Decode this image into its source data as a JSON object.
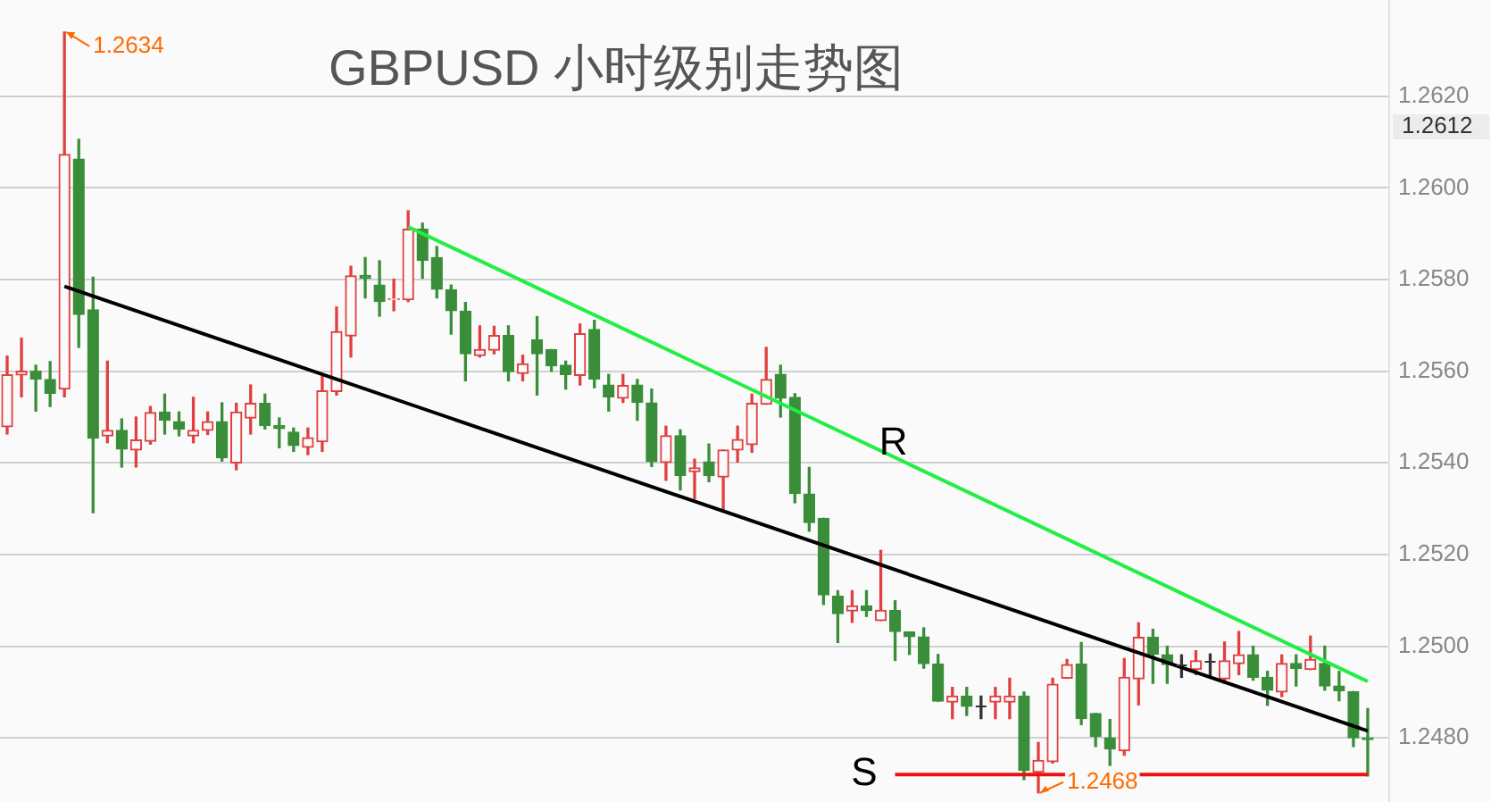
{
  "chart_data": {
    "type": "candlestick",
    "title": "GBPUSD 小时级别走势图",
    "categories": [
      null,
      null,
      null,
      null,
      null,
      null,
      null,
      null,
      null,
      null,
      null,
      null,
      null,
      null,
      null,
      null,
      null,
      null,
      null,
      null,
      null,
      null,
      null,
      null,
      null,
      null,
      null,
      null,
      null,
      null,
      null,
      null,
      null,
      null,
      null,
      null,
      null,
      null,
      null,
      null,
      null,
      null,
      null,
      null,
      null,
      null,
      null,
      null,
      null,
      null,
      null,
      null,
      null,
      null,
      null,
      null,
      null,
      null,
      null,
      null,
      null,
      null,
      null,
      null,
      null,
      null,
      null,
      null,
      null,
      null,
      null,
      null,
      null,
      null,
      null,
      null,
      null,
      null,
      null,
      null,
      null,
      null,
      null,
      null,
      null,
      null,
      null,
      null,
      null,
      null,
      null,
      null,
      null,
      null,
      null,
      null
    ],
    "ohlc": [
      [
        1.25479,
        1.25633,
        1.25463,
        1.25592
      ],
      [
        1.25592,
        1.25672,
        1.25544,
        1.256
      ],
      [
        1.256,
        1.25613,
        1.25513,
        1.25583
      ],
      [
        1.25582,
        1.25621,
        1.25523,
        1.25552
      ],
      [
        1.25561,
        1.2634,
        1.25544,
        1.26073
      ],
      [
        1.26063,
        1.26106,
        1.25652,
        1.25724
      ],
      [
        1.25734,
        1.25805,
        1.25291,
        1.25454
      ],
      [
        1.25459,
        1.25622,
        1.25444,
        1.25471
      ],
      [
        1.25471,
        1.25496,
        1.25391,
        1.2543
      ],
      [
        1.25428,
        1.255,
        1.25391,
        1.2545
      ],
      [
        1.25447,
        1.25523,
        1.25441,
        1.2551
      ],
      [
        1.25511,
        1.2555,
        1.25463,
        1.25493
      ],
      [
        1.2549,
        1.25511,
        1.25459,
        1.25474
      ],
      [
        1.25459,
        1.25543,
        1.25444,
        1.25471
      ],
      [
        1.25471,
        1.25511,
        1.25462,
        1.2549
      ],
      [
        1.2549,
        1.25531,
        1.25404,
        1.25411
      ],
      [
        1.254,
        1.2553,
        1.25385,
        1.25511
      ],
      [
        1.25498,
        1.2557,
        1.25463,
        1.2553
      ],
      [
        1.2553,
        1.2555,
        1.25474,
        1.25481
      ],
      [
        1.25481,
        1.25498,
        1.25433,
        1.25475
      ],
      [
        1.25467,
        1.25476,
        1.25425,
        1.25438
      ],
      [
        1.25434,
        1.25476,
        1.25418,
        1.25455
      ],
      [
        1.25446,
        1.2559,
        1.25425,
        1.25557
      ],
      [
        1.25556,
        1.2574,
        1.25548,
        1.25686
      ],
      [
        1.25677,
        1.25829,
        1.25631,
        1.25808
      ],
      [
        1.25809,
        1.25848,
        1.2576,
        1.25803
      ],
      [
        1.25788,
        1.25841,
        1.2572,
        1.25752
      ],
      [
        1.25756,
        1.25801,
        1.25732,
        1.25758
      ],
      [
        1.25756,
        1.2595,
        1.25752,
        1.2591
      ],
      [
        1.2591,
        1.25923,
        1.25803,
        1.25842
      ],
      [
        1.25848,
        1.25872,
        1.2576,
        1.25779
      ],
      [
        1.25778,
        1.25788,
        1.25681,
        1.25732
      ],
      [
        1.25731,
        1.2575,
        1.25579,
        1.25638
      ],
      [
        1.25634,
        1.25699,
        1.25631,
        1.25647
      ],
      [
        1.25646,
        1.25698,
        1.25638,
        1.25678
      ],
      [
        1.25678,
        1.25699,
        1.25579,
        1.25599
      ],
      [
        1.25595,
        1.25635,
        1.25579,
        1.25616
      ],
      [
        1.25668,
        1.25719,
        1.25548,
        1.25638
      ],
      [
        1.25647,
        1.25647,
        1.256,
        1.25612
      ],
      [
        1.25613,
        1.25622,
        1.25561,
        1.25593
      ],
      [
        1.25591,
        1.25703,
        1.2557,
        1.25682
      ],
      [
        1.25691,
        1.25711,
        1.25564,
        1.25583
      ],
      [
        1.2557,
        1.25593,
        1.25513,
        1.25544
      ],
      [
        1.25541,
        1.25593,
        1.25532,
        1.25569
      ],
      [
        1.2557,
        1.25582,
        1.25493,
        1.25532
      ],
      [
        1.25531,
        1.25561,
        1.25392,
        1.25403
      ],
      [
        1.25401,
        1.2548,
        1.25362,
        1.25459
      ],
      [
        1.25459,
        1.25472,
        1.25341,
        1.25372
      ],
      [
        1.25381,
        1.25408,
        1.25322,
        1.25389
      ],
      [
        1.25402,
        1.25441,
        1.25359,
        1.25372
      ],
      [
        1.25369,
        1.25428,
        1.25294,
        1.25428
      ],
      [
        1.25428,
        1.2548,
        1.25402,
        1.25451
      ],
      [
        1.2544,
        1.2555,
        1.25423,
        1.2553
      ],
      [
        1.25528,
        1.25652,
        1.25528,
        1.25582
      ],
      [
        1.25593,
        1.25613,
        1.255,
        1.25541
      ],
      [
        1.25543,
        1.25551,
        1.25313,
        1.25333
      ],
      [
        1.25332,
        1.2539,
        1.25251,
        1.2527
      ],
      [
        1.25279,
        1.25279,
        1.25091,
        1.25112
      ],
      [
        1.25109,
        1.25121,
        1.25008,
        1.25071
      ],
      [
        1.25077,
        1.25121,
        1.25052,
        1.25088
      ],
      [
        1.25088,
        1.25121,
        1.25065,
        1.25078
      ],
      [
        1.25056,
        1.25209,
        1.25056,
        1.25078
      ],
      [
        1.25078,
        1.25099,
        1.24969,
        1.25032
      ],
      [
        1.25031,
        1.25031,
        1.24982,
        1.25021
      ],
      [
        1.2502,
        1.2504,
        1.24952,
        1.24962
      ],
      [
        1.24961,
        1.24982,
        1.2488,
        1.2488
      ],
      [
        1.24878,
        1.2491,
        1.24842,
        1.24891
      ],
      [
        1.24891,
        1.2491,
        1.24849,
        1.24869
      ],
      [
        1.24871,
        1.24891,
        1.24842,
        1.24871
      ],
      [
        1.24878,
        1.2491,
        1.24842,
        1.24891
      ],
      [
        1.24878,
        1.2493,
        1.24842,
        1.24891
      ],
      [
        1.24891,
        1.249,
        1.24709,
        1.24729
      ],
      [
        1.24725,
        1.2479,
        1.2468,
        1.24751
      ],
      [
        1.24748,
        1.2493,
        1.24745,
        1.24917
      ],
      [
        1.2493,
        1.24971,
        1.2493,
        1.2496
      ],
      [
        1.24961,
        1.25008,
        1.24829,
        1.24842
      ],
      [
        1.24853,
        1.24853,
        1.24781,
        1.24803
      ],
      [
        1.248,
        1.2484,
        1.2474,
        1.24776
      ],
      [
        1.24772,
        1.24973,
        1.24762,
        1.24932
      ],
      [
        1.24929,
        1.25051,
        1.24872,
        1.25019
      ],
      [
        1.25019,
        1.25037,
        1.24919,
        1.24983
      ],
      [
        1.24981,
        1.25,
        1.24919,
        1.2496
      ],
      [
        1.24962,
        1.24981,
        1.24932,
        1.24962
      ],
      [
        1.24949,
        1.2499,
        1.24938,
        1.24968
      ],
      [
        1.24969,
        1.24983,
        1.24932,
        1.24969
      ],
      [
        1.24929,
        1.25009,
        1.24919,
        1.24968
      ],
      [
        1.24962,
        1.25032,
        1.24938,
        1.24981
      ],
      [
        1.24981,
        1.25,
        1.24926,
        1.24932
      ],
      [
        1.24932,
        1.24945,
        1.24871,
        1.24904
      ],
      [
        1.249,
        1.24981,
        1.2489,
        1.24962
      ],
      [
        1.24962,
        1.24981,
        1.24913,
        1.24951
      ],
      [
        1.24949,
        1.25022,
        1.24949,
        1.24971
      ],
      [
        1.24962,
        1.25,
        1.24904,
        1.24913
      ],
      [
        1.24913,
        1.24945,
        1.24881,
        1.24903
      ],
      [
        1.24901,
        1.24901,
        1.24781,
        1.248
      ],
      [
        1.248,
        1.24864,
        1.24717,
        1.24796
      ]
    ],
    "colors": [
      "#e04040",
      "#e04040",
      "#3a8e3a",
      "#3a8e3a",
      "#e04040",
      "#3a8e3a",
      "#3a8e3a",
      "#e04040",
      "#3a8e3a",
      "#e04040",
      "#e04040",
      "#3a8e3a",
      "#3a8e3a",
      "#e04040",
      "#e04040",
      "#3a8e3a",
      "#e04040",
      "#e04040",
      "#3a8e3a",
      "#3a8e3a",
      "#3a8e3a",
      "#e04040",
      "#e04040",
      "#e04040",
      "#e04040",
      "#3a8e3a",
      "#3a8e3a",
      "#e04040",
      "#e04040",
      "#3a8e3a",
      "#3a8e3a",
      "#3a8e3a",
      "#3a8e3a",
      "#e04040",
      "#e04040",
      "#3a8e3a",
      "#e04040",
      "#3a8e3a",
      "#3a8e3a",
      "#3a8e3a",
      "#e04040",
      "#3a8e3a",
      "#3a8e3a",
      "#e04040",
      "#3a8e3a",
      "#3a8e3a",
      "#e04040",
      "#3a8e3a",
      "#e04040",
      "#3a8e3a",
      "#e04040",
      "#e04040",
      "#e04040",
      "#e04040",
      "#3a8e3a",
      "#3a8e3a",
      "#3a8e3a",
      "#3a8e3a",
      "#3a8e3a",
      "#e04040",
      "#3a8e3a",
      "#e04040",
      "#3a8e3a",
      "#3a8e3a",
      "#3a8e3a",
      "#3a8e3a",
      "#e04040",
      "#3a8e3a",
      "#333333",
      "#e04040",
      "#e04040",
      "#3a8e3a",
      "#e04040",
      "#e04040",
      "#e04040",
      "#3a8e3a",
      "#3a8e3a",
      "#3a8e3a",
      "#e04040",
      "#e04040",
      "#3a8e3a",
      "#3a8e3a",
      "#333333",
      "#e04040",
      "#333333",
      "#e04040",
      "#e04040",
      "#3a8e3a",
      "#3a8e3a",
      "#e04040",
      "#3a8e3a",
      "#e04040",
      "#3a8e3a",
      "#3a8e3a",
      "#3a8e3a",
      "#3a8e3a"
    ],
    "series": [
      {
        "name": "R",
        "type": "line",
        "color": "#22ee44",
        "values": [
          null,
          null,
          null,
          null,
          null,
          null,
          null,
          null,
          null,
          null,
          null,
          null,
          null,
          null,
          null,
          null,
          null,
          null,
          null,
          null,
          null,
          null,
          null,
          null,
          null,
          null,
          null,
          null,
          1.25915,
          null,
          null,
          null,
          null,
          null,
          null,
          null,
          null,
          null,
          null,
          null,
          null,
          null,
          null,
          null,
          null,
          null,
          null,
          null,
          null,
          null,
          null,
          null,
          null,
          null,
          null,
          null,
          null,
          null,
          null,
          null,
          null,
          null,
          null,
          null,
          null,
          null,
          null,
          null,
          null,
          null,
          null,
          null,
          null,
          null,
          null,
          null,
          null,
          null,
          null,
          null,
          null,
          null,
          null,
          null,
          null,
          null,
          null,
          null,
          null,
          null,
          null,
          null,
          null,
          null,
          null,
          1.24923
        ]
      },
      {
        "type": "line",
        "color": "#000000",
        "values": [
          null,
          null,
          null,
          null,
          1.25785,
          null,
          null,
          null,
          null,
          null,
          null,
          null,
          null,
          null,
          null,
          null,
          null,
          null,
          null,
          null,
          null,
          null,
          null,
          null,
          null,
          null,
          null,
          null,
          null,
          null,
          null,
          null,
          null,
          null,
          null,
          null,
          null,
          null,
          null,
          null,
          null,
          null,
          null,
          null,
          null,
          null,
          null,
          null,
          null,
          null,
          null,
          null,
          null,
          null,
          null,
          null,
          null,
          null,
          null,
          null,
          null,
          null,
          null,
          null,
          null,
          null,
          null,
          null,
          null,
          null,
          null,
          null,
          null,
          null,
          null,
          null,
          null,
          null,
          null,
          null,
          null,
          null,
          null,
          null,
          null,
          null,
          null,
          null,
          null,
          null,
          null,
          null,
          null,
          null,
          null,
          1.24815
        ]
      },
      {
        "name": "S",
        "type": "line",
        "color": "#ee1111",
        "values": [
          null,
          null,
          null,
          null,
          null,
          null,
          null,
          null,
          null,
          null,
          null,
          null,
          null,
          null,
          null,
          null,
          null,
          null,
          null,
          null,
          null,
          null,
          null,
          null,
          null,
          null,
          null,
          null,
          null,
          null,
          null,
          null,
          null,
          null,
          null,
          null,
          null,
          null,
          null,
          null,
          null,
          null,
          null,
          null,
          null,
          null,
          null,
          null,
          null,
          null,
          null,
          null,
          null,
          null,
          null,
          null,
          null,
          null,
          null,
          null,
          null,
          null,
          1.2472,
          null,
          null,
          null,
          null,
          null,
          null,
          null,
          null,
          null,
          null,
          null,
          null,
          null,
          null,
          null,
          null,
          null,
          null,
          null,
          null,
          null,
          null,
          null,
          null,
          null,
          null,
          null,
          null,
          null,
          null,
          null,
          null,
          1.2472
        ]
      }
    ],
    "ylim": [
      1.2466,
      1.2641
    ],
    "yticks": [
      {
        "value": 1.248,
        "label": "1.2480"
      },
      {
        "value": 1.25,
        "label": "1.2500"
      },
      {
        "value": 1.252,
        "label": "1.2520"
      },
      {
        "value": 1.254,
        "label": "1.2540"
      },
      {
        "value": 1.256,
        "label": "1.2560"
      },
      {
        "value": 1.258,
        "label": "1.2580"
      },
      {
        "value": 1.26,
        "label": "1.2600"
      },
      {
        "value": 1.262,
        "label": "1.2620"
      }
    ],
    "annotations": [
      "1.2634",
      "1.2468",
      "1.2612"
    ],
    "grid": "y",
    "tick_labels": "y",
    "marker": "none"
  }
}
